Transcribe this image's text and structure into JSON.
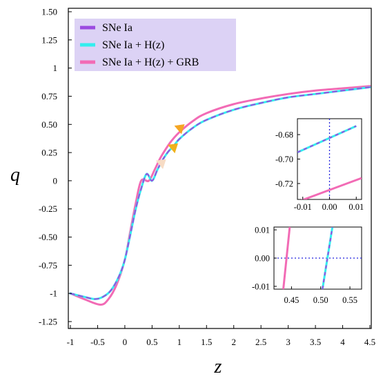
{
  "chart_data": {
    "type": "line",
    "xlabel": "z",
    "ylabel": "q",
    "xlim": [
      -1,
      4.5
    ],
    "ylim": [
      -1.3,
      1.55
    ],
    "x_ticks": [
      "-1",
      "-0.5",
      "0",
      "0.5",
      "1",
      "1.5",
      "2",
      "2.5",
      "3",
      "3.5",
      "4",
      "4.5"
    ],
    "y_ticks": [
      "1.50",
      "1.25",
      "1",
      "0.75",
      "0.50",
      "0.25",
      "0",
      "-0.25",
      "-0.50",
      "-0.75",
      "-1",
      "-1.25"
    ],
    "legend": {
      "position": "top-left",
      "background": "#dcd2f5",
      "entries": [
        {
          "label": "SNe Ia",
          "color": "#9b4be0",
          "style": "dashed"
        },
        {
          "label": "SNe Ia + H(z)",
          "color": "#33eeee",
          "style": "solid"
        },
        {
          "label": "SNe Ia + H(z) + GRB",
          "color": "#f26bb5",
          "style": "solid"
        }
      ]
    },
    "series": [
      {
        "name": "SNe Ia",
        "color": "#9b4be0",
        "points": [
          [
            -1,
            -1.0
          ],
          [
            -0.75,
            -1.03
          ],
          [
            -0.55,
            -1.05
          ],
          [
            -0.4,
            -1.03
          ],
          [
            -0.25,
            -0.97
          ],
          [
            -0.1,
            -0.84
          ],
          [
            0,
            -0.7
          ],
          [
            0.1,
            -0.48
          ],
          [
            0.2,
            -0.25
          ],
          [
            0.3,
            -0.07
          ],
          [
            0.4,
            0.06
          ],
          [
            0.5,
            0.0
          ],
          [
            0.6,
            0.1
          ],
          [
            0.7,
            0.19
          ],
          [
            0.8,
            0.26
          ],
          [
            0.9,
            0.31
          ],
          [
            1.0,
            0.37
          ],
          [
            1.25,
            0.47
          ],
          [
            1.5,
            0.54
          ],
          [
            2.0,
            0.63
          ],
          [
            2.5,
            0.69
          ],
          [
            3.0,
            0.74
          ],
          [
            3.5,
            0.77
          ],
          [
            4.0,
            0.8
          ],
          [
            4.5,
            0.83
          ]
        ]
      },
      {
        "name": "SNe Ia + H(z)",
        "color": "#33eeee",
        "points": [
          [
            -1,
            -1.0
          ],
          [
            -0.75,
            -1.03
          ],
          [
            -0.55,
            -1.05
          ],
          [
            -0.4,
            -1.03
          ],
          [
            -0.25,
            -0.97
          ],
          [
            -0.1,
            -0.84
          ],
          [
            0,
            -0.7
          ],
          [
            0.1,
            -0.48
          ],
          [
            0.2,
            -0.25
          ],
          [
            0.3,
            -0.07
          ],
          [
            0.4,
            0.06
          ],
          [
            0.5,
            0.0
          ],
          [
            0.6,
            0.1
          ],
          [
            0.7,
            0.19
          ],
          [
            0.8,
            0.26
          ],
          [
            0.9,
            0.31
          ],
          [
            1.0,
            0.37
          ],
          [
            1.25,
            0.47
          ],
          [
            1.5,
            0.54
          ],
          [
            2.0,
            0.63
          ],
          [
            2.5,
            0.69
          ],
          [
            3.0,
            0.74
          ],
          [
            3.5,
            0.77
          ],
          [
            4.0,
            0.8
          ],
          [
            4.5,
            0.83
          ]
        ]
      },
      {
        "name": "SNe Ia + H(z) + GRB",
        "color": "#f26bb5",
        "points": [
          [
            -1,
            -1.0
          ],
          [
            -0.75,
            -1.05
          ],
          [
            -0.45,
            -1.1
          ],
          [
            -0.3,
            -1.05
          ],
          [
            -0.15,
            -0.92
          ],
          [
            0,
            -0.7
          ],
          [
            0.1,
            -0.45
          ],
          [
            0.2,
            -0.2
          ],
          [
            0.3,
            0.0
          ],
          [
            0.44,
            0.0
          ],
          [
            0.55,
            0.1
          ],
          [
            0.65,
            0.2
          ],
          [
            0.75,
            0.28
          ],
          [
            0.85,
            0.35
          ],
          [
            1.0,
            0.43
          ],
          [
            1.25,
            0.53
          ],
          [
            1.5,
            0.6
          ],
          [
            2.0,
            0.68
          ],
          [
            2.5,
            0.73
          ],
          [
            3.0,
            0.77
          ],
          [
            3.5,
            0.8
          ],
          [
            4.0,
            0.82
          ],
          [
            4.5,
            0.84
          ]
        ]
      }
    ],
    "markers": [
      {
        "x": 1.02,
        "y": 0.47,
        "color": "#f5a623",
        "shape": "triangle"
      },
      {
        "x": 0.9,
        "y": 0.3,
        "color": "#f0b21b",
        "shape": "triangle"
      },
      {
        "x": 0.68,
        "y": 0.16,
        "color": "#f7dcc5",
        "shape": "triangle"
      }
    ],
    "insets": [
      {
        "location": "right-middle",
        "xlim": [
          -0.012,
          0.012
        ],
        "ylim": [
          -0.733,
          -0.667
        ],
        "x_ticks": [
          "-0.01",
          "0.00",
          "0.01"
        ],
        "y_ticks": [
          "-0.68",
          "-0.70",
          "-0.72"
        ],
        "reference_line": {
          "axis": "x",
          "value": 0,
          "color": "#2222dd",
          "style": "dotted"
        },
        "series": [
          {
            "color": "#9b4be0",
            "style": "dashed",
            "points": [
              [
                -0.012,
                -0.6945
              ],
              [
                0.01,
                -0.673
              ]
            ]
          },
          {
            "color": "#33eeee",
            "style": "solid",
            "points": [
              [
                -0.012,
                -0.6945
              ],
              [
                0.01,
                -0.673
              ]
            ]
          },
          {
            "color": "#f26bb5",
            "style": "solid",
            "points": [
              [
                -0.012,
                -0.735
              ],
              [
                0.012,
                -0.7155
              ]
            ]
          }
        ]
      },
      {
        "location": "right-bottom",
        "xlim": [
          0.42,
          0.57
        ],
        "ylim": [
          -0.011,
          0.011
        ],
        "x_ticks": [
          "0.45",
          "0.50",
          "0.55"
        ],
        "y_ticks": [
          "0.01",
          "0.00",
          "-0.01"
        ],
        "reference_line": {
          "axis": "y",
          "value": 0,
          "color": "#2222dd",
          "style": "dotted"
        },
        "series": [
          {
            "color": "#9b4be0",
            "style": "dashed",
            "points": [
              [
                0.503,
                -0.011
              ],
              [
                0.52,
                0.011
              ]
            ]
          },
          {
            "color": "#33eeee",
            "style": "solid",
            "points": [
              [
                0.503,
                -0.011
              ],
              [
                0.52,
                0.011
              ]
            ]
          },
          {
            "color": "#f26bb5",
            "style": "solid",
            "points": [
              [
                0.436,
                -0.011
              ],
              [
                0.447,
                0.011
              ]
            ]
          }
        ]
      }
    ]
  }
}
